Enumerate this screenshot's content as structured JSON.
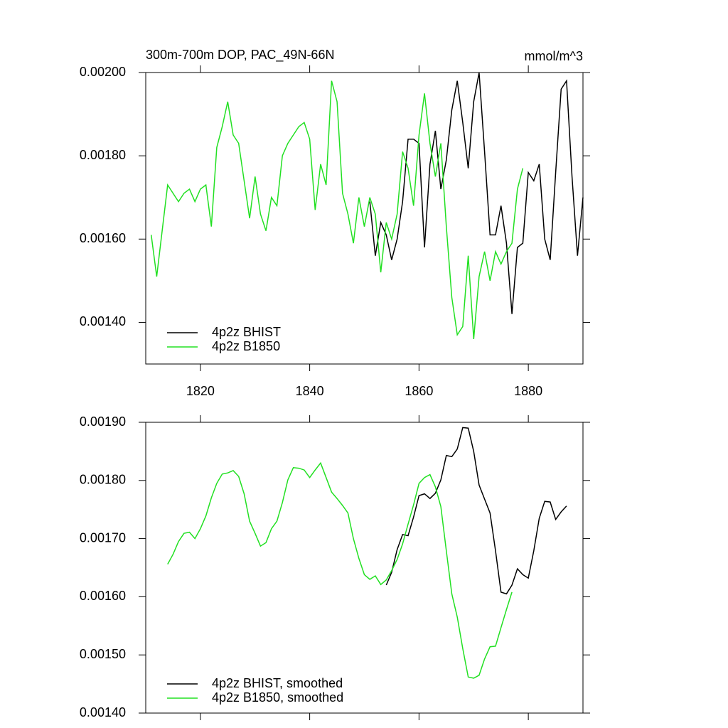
{
  "chart_data": [
    {
      "type": "line",
      "title": "300m-700m DOP, PAC_49N-66N",
      "units": "mmol/m^3",
      "x": [
        1811,
        1812,
        1813,
        1814,
        1815,
        1816,
        1817,
        1818,
        1819,
        1820,
        1821,
        1822,
        1823,
        1824,
        1825,
        1826,
        1827,
        1828,
        1829,
        1830,
        1831,
        1832,
        1833,
        1834,
        1835,
        1836,
        1837,
        1838,
        1839,
        1840,
        1841,
        1842,
        1843,
        1844,
        1845,
        1846,
        1847,
        1848,
        1849,
        1850,
        1851,
        1852,
        1853,
        1854,
        1855,
        1856,
        1857,
        1858,
        1859,
        1860,
        1861,
        1862,
        1863,
        1864,
        1865,
        1866,
        1867,
        1868,
        1869,
        1870,
        1871,
        1872,
        1873,
        1874,
        1875,
        1876,
        1877,
        1878,
        1879,
        1880,
        1881,
        1882,
        1883,
        1884,
        1885,
        1886,
        1887,
        1888,
        1889,
        1890
      ],
      "xlim": [
        1810,
        1890
      ],
      "xticks": [
        1820,
        1840,
        1860,
        1880
      ],
      "ylim": [
        0.0013,
        0.002
      ],
      "yticks": [
        {
          "value": 0.0014,
          "label": "0.00140"
        },
        {
          "value": 0.0016,
          "label": "0.00160"
        },
        {
          "value": 0.0018,
          "label": "0.00180"
        },
        {
          "value": 0.002,
          "label": "0.00200"
        }
      ],
      "series": [
        {
          "name": "4p2z BHIST",
          "color": "#000000",
          "values": [
            null,
            null,
            null,
            null,
            null,
            null,
            null,
            null,
            null,
            null,
            null,
            null,
            null,
            null,
            null,
            null,
            null,
            null,
            null,
            null,
            null,
            null,
            null,
            null,
            null,
            null,
            null,
            null,
            null,
            null,
            null,
            null,
            null,
            null,
            null,
            null,
            null,
            null,
            null,
            null,
            0.00169,
            0.00156,
            0.00164,
            0.00161,
            0.00155,
            0.0016,
            0.00169,
            0.00184,
            0.00184,
            0.00183,
            0.00158,
            0.00178,
            0.00186,
            0.00172,
            0.00179,
            0.00191,
            0.00198,
            0.00188,
            0.00177,
            0.00193,
            0.002,
            0.00181,
            0.00161,
            0.00161,
            0.00168,
            0.00159,
            0.00142,
            0.00158,
            0.00159,
            0.00176,
            0.00174,
            0.00178,
            0.0016,
            0.00155,
            0.00176,
            0.00196,
            0.00198,
            0.00175,
            0.00156,
            0.0017
          ]
        },
        {
          "name": "4p2z B1850",
          "color": "#22e022",
          "values": [
            0.00161,
            0.00151,
            0.00162,
            0.00173,
            0.00171,
            0.00169,
            0.00171,
            0.00172,
            0.00169,
            0.00172,
            0.00173,
            0.00163,
            0.00182,
            0.00187,
            0.00193,
            0.00185,
            0.00183,
            0.00174,
            0.00165,
            0.00175,
            0.00166,
            0.00162,
            0.0017,
            0.00168,
            0.0018,
            0.00183,
            0.00185,
            0.00187,
            0.00188,
            0.00184,
            0.00167,
            0.00178,
            0.00173,
            0.00198,
            0.00193,
            0.00171,
            0.00166,
            0.00159,
            0.0017,
            0.00163,
            0.0017,
            0.00166,
            0.00152,
            0.00164,
            0.0016,
            0.00166,
            0.00181,
            0.00177,
            0.00168,
            0.00185,
            0.00195,
            0.00183,
            0.00175,
            0.00183,
            0.00163,
            0.00146,
            0.00137,
            0.00139,
            0.00156,
            0.00136,
            0.00151,
            0.00157,
            0.0015,
            0.00157,
            0.00154,
            0.00157,
            0.00159,
            0.00172,
            0.00177,
            null,
            null,
            null,
            null,
            null,
            null,
            null,
            null,
            null,
            null,
            null
          ]
        }
      ]
    },
    {
      "type": "line",
      "x": [
        1814,
        1815,
        1816,
        1817,
        1818,
        1819,
        1820,
        1821,
        1822,
        1823,
        1824,
        1825,
        1826,
        1827,
        1828,
        1829,
        1830,
        1831,
        1832,
        1833,
        1834,
        1835,
        1836,
        1837,
        1838,
        1839,
        1840,
        1841,
        1842,
        1843,
        1844,
        1845,
        1846,
        1847,
        1848,
        1849,
        1850,
        1851,
        1852,
        1853,
        1854,
        1855,
        1856,
        1857,
        1858,
        1859,
        1860,
        1861,
        1862,
        1863,
        1864,
        1865,
        1866,
        1867,
        1868,
        1869,
        1870,
        1871,
        1872,
        1873,
        1874,
        1875,
        1876,
        1877,
        1878,
        1879,
        1880,
        1881,
        1882,
        1883,
        1884,
        1885,
        1886,
        1887
      ],
      "xlim": [
        1810,
        1890
      ],
      "xticks": [
        1820,
        1840,
        1860,
        1880
      ],
      "ylim": [
        0.0014,
        0.0019
      ],
      "yticks": [
        {
          "value": 0.0014,
          "label": "0.00140"
        },
        {
          "value": 0.0015,
          "label": "0.00150"
        },
        {
          "value": 0.0016,
          "label": "0.00160"
        },
        {
          "value": 0.0017,
          "label": "0.00170"
        },
        {
          "value": 0.0018,
          "label": "0.00180"
        },
        {
          "value": 0.0019,
          "label": "0.00190"
        }
      ],
      "series": [
        {
          "name": "4p2z BHIST, smoothed",
          "color": "#000000",
          "values": [
            null,
            null,
            null,
            null,
            null,
            null,
            null,
            null,
            null,
            null,
            null,
            null,
            null,
            null,
            null,
            null,
            null,
            null,
            null,
            null,
            null,
            null,
            null,
            null,
            null,
            null,
            null,
            null,
            null,
            null,
            null,
            null,
            null,
            null,
            null,
            null,
            null,
            null,
            null,
            null,
            0.00162,
            0.001642,
            0.001681,
            0.001707,
            0.001705,
            0.001737,
            0.001774,
            0.001777,
            0.001769,
            0.001778,
            0.001801,
            0.001843,
            0.001841,
            0.001854,
            0.001891,
            0.00189,
            0.00185,
            0.001792,
            0.001768,
            0.001744,
            0.001679,
            0.001608,
            0.001605,
            0.00162,
            0.001648,
            0.001638,
            0.001632,
            0.001679,
            0.001735,
            0.001764,
            0.001763,
            0.001733,
            0.001746,
            0.001756
          ]
        },
        {
          "name": "4p2z B1850, smoothed",
          "color": "#22e022",
          "values": [
            0.001656,
            0.001673,
            0.001695,
            0.001709,
            0.001711,
            0.0017,
            0.001717,
            0.001739,
            0.00177,
            0.001795,
            0.001811,
            0.001813,
            0.001817,
            0.001807,
            0.001777,
            0.00173,
            0.001709,
            0.001687,
            0.001693,
            0.001717,
            0.00173,
            0.001762,
            0.001801,
            0.001822,
            0.001821,
            0.001818,
            0.001805,
            0.001818,
            0.00183,
            0.001805,
            0.00178,
            0.001769,
            0.001757,
            0.001744,
            0.0017,
            0.001666,
            0.001638,
            0.00163,
            0.001636,
            0.001621,
            0.001629,
            0.001645,
            0.001664,
            0.001691,
            0.001725,
            0.001758,
            0.001795,
            0.001805,
            0.00181,
            0.001789,
            0.001755,
            0.001679,
            0.001605,
            0.001565,
            0.001511,
            0.001462,
            0.00146,
            0.001465,
            0.001493,
            0.001514,
            0.001515,
            0.001547,
            0.001578,
            0.001608,
            null,
            null,
            null,
            null,
            null,
            null,
            null,
            null,
            null,
            null
          ]
        }
      ]
    }
  ]
}
